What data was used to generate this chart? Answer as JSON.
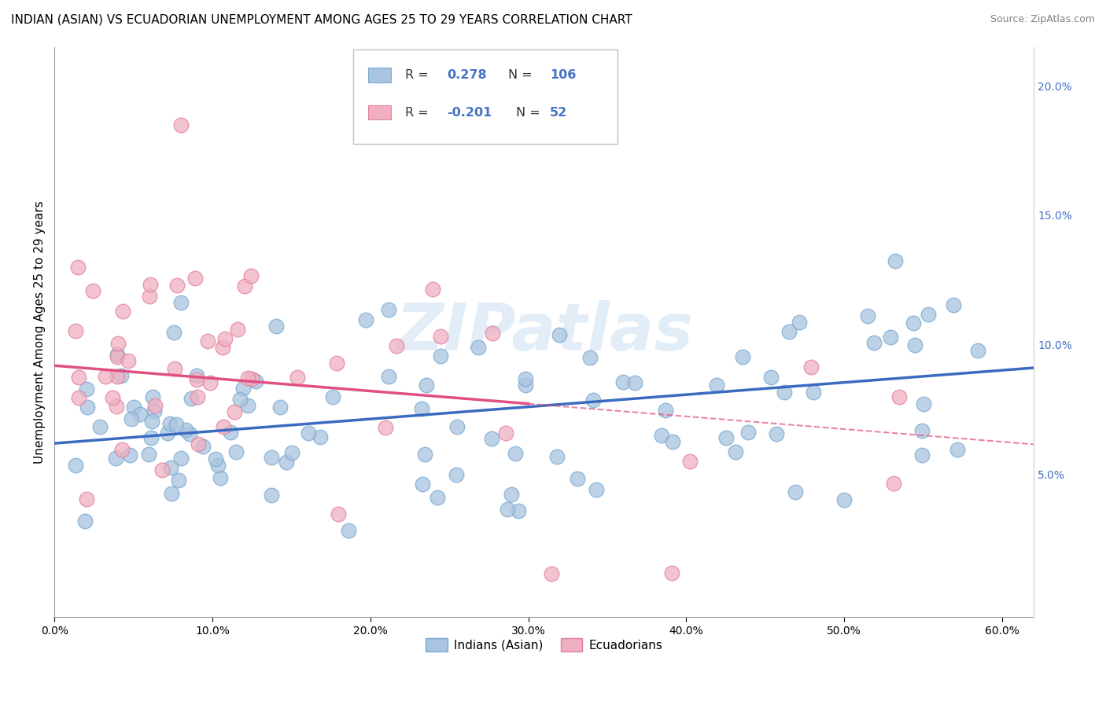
{
  "title": "INDIAN (ASIAN) VS ECUADORIAN UNEMPLOYMENT AMONG AGES 25 TO 29 YEARS CORRELATION CHART",
  "source": "Source: ZipAtlas.com",
  "ylabel": "Unemployment Among Ages 25 to 29 years",
  "xlim": [
    0.0,
    0.62
  ],
  "ylim": [
    -0.005,
    0.215
  ],
  "blue_R": 0.278,
  "blue_N": 106,
  "pink_R": -0.201,
  "pink_N": 52,
  "blue_color": "#a8c4e0",
  "blue_edge_color": "#7aaad0",
  "blue_line_color": "#3a6bbf",
  "pink_color": "#f0b0c0",
  "pink_edge_color": "#e080a0",
  "pink_line_color": "#e05080",
  "background_color": "#ffffff",
  "grid_color": "#cccccc",
  "watermark": "ZIPatlas",
  "title_fontsize": 11,
  "source_fontsize": 9,
  "right_axis_color": "#4472c4",
  "legend_label_blue": "Indians (Asian)",
  "legend_label_pink": "Ecuadorians"
}
